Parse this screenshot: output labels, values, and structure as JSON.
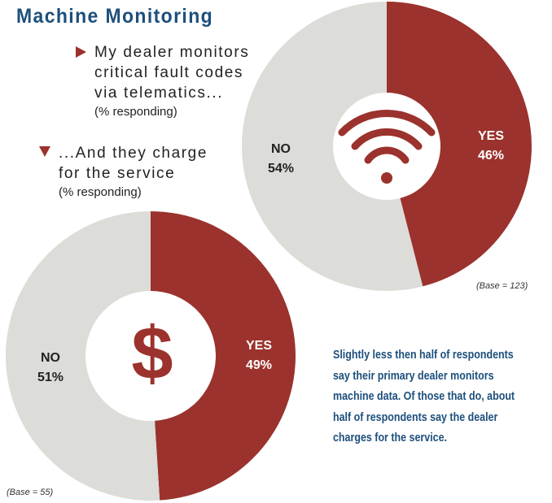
{
  "title": "Machine Monitoring",
  "legend": [
    {
      "text": "My dealer monitors critical fault codes via telematics...",
      "sub": "(% responding)",
      "marker": "triangle-right"
    },
    {
      "text": "...And they charge for the service",
      "sub": "(% responding)",
      "marker": "triangle-down"
    }
  ],
  "note": "Slightly less then half of respondents say their primary dealer monitors machine data. Of those that do, about half of respondents say the dealer charges for the service.",
  "colors": {
    "yes": "#9b322d",
    "no": "#dcdcd8",
    "text_blue": "#1d4f7c"
  },
  "chart_data": [
    {
      "type": "pie",
      "donut": true,
      "center_icon": "wifi-icon",
      "base": "(Base = 123)",
      "categories": [
        "YES",
        "NO"
      ],
      "values": [
        46,
        54
      ],
      "labels": [
        "46%",
        "54%"
      ]
    },
    {
      "type": "pie",
      "donut": true,
      "center_icon": "dollar-icon",
      "base": "(Base = 55)",
      "categories": [
        "YES",
        "NO"
      ],
      "values": [
        49,
        51
      ],
      "labels": [
        "49%",
        "51%"
      ]
    }
  ]
}
